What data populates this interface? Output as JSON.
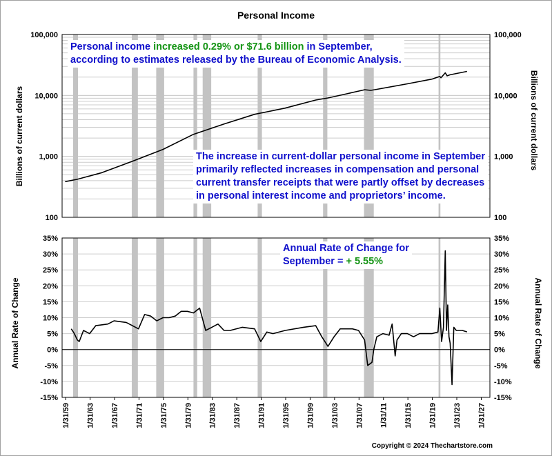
{
  "chart_data": [
    {
      "type": "line",
      "title": "Personal Income",
      "ylabel": "Billions of current dollars",
      "yscale": "log",
      "ylim": [
        100,
        100000
      ],
      "yticks": [
        "100",
        "1,000",
        "10,000",
        "100,000"
      ],
      "annotation": {
        "line1_a": "Personal income ",
        "line1_b": "increased 0.29% or $71.6 billion",
        "line1_c": " in September,",
        "line2": "according to estimates released by the Bureau of Economic Analysis."
      },
      "annotation2": [
        "The increase in current-dollar personal income in September",
        "primarily reflected increases in compensation and personal",
        "current transfer receipts that were partly offset by decreases",
        "in personal interest income and proprietors’ income."
      ],
      "series": [
        {
          "x": [
            1959,
            1961,
            1965,
            1970,
            1975,
            1980,
            1985,
            1990,
            1995,
            2000,
            2002,
            2005,
            2008,
            2009,
            2010,
            2015,
            2019,
            2020.3,
            2020.5,
            2021.2,
            2021.5,
            2022,
            2024.75
          ],
          "values": [
            385,
            420,
            540,
            830,
            1300,
            2300,
            3400,
            4900,
            6200,
            8400,
            9100,
            10600,
            12400,
            12100,
            12600,
            15500,
            18500,
            20500,
            19500,
            23500,
            21000,
            21800,
            24800
          ]
        }
      ]
    },
    {
      "type": "line",
      "ylabel": "Annual Rate of Change",
      "ylim": [
        -15,
        35
      ],
      "yticks": [
        "-15%",
        "-10%",
        "-5%",
        "0%",
        "5%",
        "10%",
        "15%",
        "20%",
        "25%",
        "30%",
        "35%"
      ],
      "annotation": {
        "line1": "Annual Rate of Change for",
        "line2_a": "September = ",
        "line2_b": "+ 5.55%"
      },
      "series": [
        {
          "x": [
            1960,
            1960.5,
            1961,
            1961.3,
            1962,
            1963,
            1964,
            1966,
            1967,
            1969,
            1970,
            1971,
            1972,
            1973,
            1974,
            1975,
            1976,
            1977,
            1978,
            1979,
            1980,
            1981,
            1981.5,
            1982,
            1983,
            1984,
            1985,
            1986,
            1988,
            1990,
            1991,
            1992,
            1993,
            1995,
            1998,
            2000,
            2001,
            2002,
            2003,
            2004,
            2006,
            2007,
            2008,
            2008.5,
            2009.2,
            2009.5,
            2010,
            2011,
            2012,
            2012.5,
            2013,
            2013.3,
            2014,
            2015,
            2016,
            2017,
            2018,
            2019,
            2020,
            2020.3,
            2020.6,
            2020.9,
            2021.2,
            2021.4,
            2021.6,
            2021.8,
            2022,
            2022.3,
            2022.6,
            2023,
            2024,
            2024.75
          ],
          "values": [
            6.5,
            5,
            3,
            2.5,
            6,
            5,
            7.5,
            8,
            9,
            8.5,
            7.5,
            6.5,
            11,
            10.5,
            9,
            10,
            10,
            10.5,
            12,
            12,
            11.5,
            13,
            9.5,
            6,
            7,
            8,
            6,
            6,
            7,
            6.5,
            2.5,
            5.5,
            5,
            6,
            7,
            7.5,
            4,
            1,
            4,
            6.5,
            6.5,
            6,
            3,
            -5,
            -4,
            0,
            4,
            5,
            4.5,
            8,
            -2,
            3,
            5,
            5,
            4,
            5,
            5,
            5,
            5.5,
            13,
            2.5,
            7,
            31,
            6,
            14,
            4,
            2,
            -11,
            7,
            6,
            6,
            5.55
          ]
        }
      ]
    }
  ],
  "xaxis": {
    "xlim": [
      1958.5,
      2028.5
    ],
    "ticks": [
      "1/31/59",
      "1/31/63",
      "1/31/67",
      "1/31/71",
      "1/31/75",
      "1/31/79",
      "1/31/83",
      "1/31/87",
      "1/31/91",
      "1/31/95",
      "1/31/99",
      "1/31/03",
      "1/31/07",
      "1/31/11",
      "1/31/15",
      "1/31/19",
      "1/31/23",
      "1/31/27"
    ]
  },
  "recessions": [
    [
      1960.3,
      1961.1
    ],
    [
      1969.9,
      1970.9
    ],
    [
      1973.9,
      1975.2
    ],
    [
      1980.0,
      1980.6
    ],
    [
      1981.5,
      1982.9
    ],
    [
      1990.5,
      1991.2
    ],
    [
      2001.2,
      2001.9
    ],
    [
      2007.9,
      2009.5
    ],
    [
      2020.1,
      2020.4
    ]
  ],
  "colors": {
    "series": "#000000",
    "recession": "#c3c3c3",
    "grid": "#cccccc",
    "note_text": "#1010cc",
    "note_highlight": "#149414"
  },
  "copyright": "Copyright © 2024 Thechartstore.com"
}
